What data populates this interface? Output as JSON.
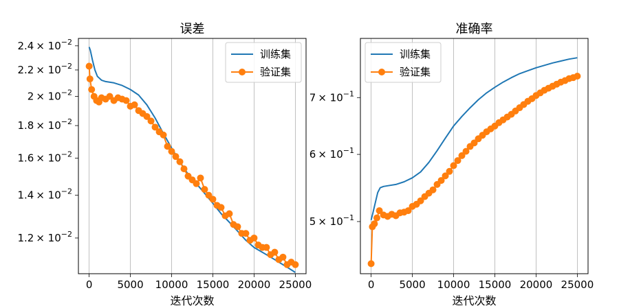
{
  "chart_data": [
    {
      "type": "line",
      "title": "误差",
      "xlabel": "迭代次数",
      "ylabel": "",
      "xlim": [
        -1300,
        26300
      ],
      "ylim": [
        0.01055,
        0.02465
      ],
      "yscale": "log",
      "grid": "x",
      "legend": "top-right",
      "xticks": [
        0,
        5000,
        10000,
        15000,
        20000,
        25000
      ],
      "xtick_labels": [
        "0",
        "5000",
        "10000",
        "15000",
        "20000",
        "25000"
      ],
      "yticks": [
        0.012,
        0.014,
        0.016,
        0.018,
        0.02,
        0.022,
        0.024
      ],
      "ytick_mantissas": [
        "1.2",
        "1.4",
        "1.6",
        "1.8",
        "2",
        "2.2",
        "2.4"
      ],
      "ytick_exponents": [
        "−2",
        "−2",
        "−2",
        "−2",
        "−2",
        "−2",
        "−2"
      ],
      "ytick_base": "× 10",
      "series": [
        {
          "name": "训练集",
          "color": "#1f77b4",
          "marker": "none",
          "x": [
            0,
            150,
            400,
            700,
            1000,
            1500,
            2000,
            3000,
            4000,
            5000,
            6000,
            7000,
            8000,
            9000,
            10000,
            11000,
            12000,
            13000,
            14000,
            15000,
            16000,
            17000,
            18000,
            19000,
            20000,
            21000,
            22000,
            23000,
            24000,
            25000
          ],
          "y": [
            0.0239,
            0.0236,
            0.0228,
            0.022,
            0.0215,
            0.0212,
            0.0211,
            0.021,
            0.0208,
            0.0205,
            0.0201,
            0.0194,
            0.0185,
            0.0175,
            0.0166,
            0.0158,
            0.0151,
            0.0146,
            0.0141,
            0.0136,
            0.0131,
            0.0127,
            0.0123,
            0.0119,
            0.0116,
            0.0114,
            0.0112,
            0.011,
            0.0108,
            0.0106
          ]
        },
        {
          "name": "验证集",
          "color": "#ff7f0e",
          "marker": "o",
          "x": [
            0,
            100,
            300,
            600,
            900,
            1200,
            1500,
            2000,
            2500,
            3000,
            3500,
            4000,
            4500,
            5000,
            5500,
            6000,
            6500,
            7000,
            7500,
            8000,
            8500,
            9000,
            9500,
            10000,
            10500,
            11000,
            11500,
            12000,
            12500,
            13000,
            13500,
            14000,
            14500,
            15000,
            15500,
            16000,
            16500,
            17000,
            17500,
            18000,
            18500,
            19000,
            19500,
            20000,
            20500,
            21000,
            21500,
            22000,
            22500,
            23000,
            23500,
            24000,
            24500,
            25000
          ],
          "y": [
            0.0223,
            0.0213,
            0.0205,
            0.02,
            0.0197,
            0.0196,
            0.0199,
            0.0198,
            0.02,
            0.0197,
            0.0199,
            0.0198,
            0.0197,
            0.0193,
            0.0194,
            0.019,
            0.0188,
            0.0186,
            0.0183,
            0.0179,
            0.0176,
            0.0174,
            0.0167,
            0.0164,
            0.0161,
            0.0158,
            0.0154,
            0.015,
            0.0148,
            0.0146,
            0.0149,
            0.0143,
            0.014,
            0.0138,
            0.0135,
            0.0134,
            0.013,
            0.0131,
            0.0126,
            0.0125,
            0.0122,
            0.0122,
            0.0119,
            0.012,
            0.0117,
            0.0116,
            0.0116,
            0.0113,
            0.0114,
            0.0111,
            0.0112,
            0.0109,
            0.011,
            0.0109
          ]
        }
      ]
    },
    {
      "type": "line",
      "title": "准确率",
      "xlabel": "迭代次数",
      "ylabel": "",
      "xlim": [
        -1300,
        26300
      ],
      "ylim": [
        0.434,
        0.822
      ],
      "yscale": "log",
      "grid": "x",
      "legend": "top-left",
      "xticks": [
        0,
        5000,
        10000,
        15000,
        20000,
        25000
      ],
      "xtick_labels": [
        "0",
        "5000",
        "10000",
        "15000",
        "20000",
        "25000"
      ],
      "yticks": [
        0.5,
        0.6,
        0.7
      ],
      "ytick_mantissas": [
        "5",
        "6",
        "7"
      ],
      "ytick_exponents": [
        "−1",
        "−1",
        "−1"
      ],
      "ytick_base": "× 10",
      "series": [
        {
          "name": "训练集",
          "color": "#1f77b4",
          "marker": "none",
          "x": [
            0,
            200,
            500,
            800,
            1100,
            1500,
            2000,
            3000,
            4000,
            5000,
            6000,
            7000,
            8000,
            9000,
            10000,
            11000,
            12000,
            13000,
            14000,
            15000,
            16000,
            17000,
            18000,
            19000,
            20000,
            21000,
            22000,
            23000,
            24000,
            25000
          ],
          "y": [
            0.502,
            0.511,
            0.526,
            0.541,
            0.548,
            0.55,
            0.551,
            0.553,
            0.557,
            0.563,
            0.572,
            0.587,
            0.606,
            0.627,
            0.648,
            0.665,
            0.681,
            0.696,
            0.709,
            0.72,
            0.73,
            0.739,
            0.747,
            0.753,
            0.759,
            0.764,
            0.769,
            0.773,
            0.777,
            0.78
          ]
        },
        {
          "name": "验证集",
          "color": "#ff7f0e",
          "marker": "o",
          "x": [
            0,
            150,
            400,
            700,
            1000,
            1500,
            2000,
            2500,
            3000,
            3500,
            4000,
            4500,
            5000,
            5500,
            6000,
            6500,
            7000,
            7500,
            8000,
            8500,
            9000,
            9500,
            10000,
            10500,
            11000,
            11500,
            12000,
            12500,
            13000,
            13500,
            14000,
            14500,
            15000,
            15500,
            16000,
            16500,
            17000,
            17500,
            18000,
            18500,
            19000,
            19500,
            20000,
            20500,
            21000,
            21500,
            22000,
            22500,
            23000,
            23500,
            24000,
            24500,
            25000
          ],
          "y": [
            0.446,
            0.493,
            0.497,
            0.505,
            0.515,
            0.509,
            0.507,
            0.51,
            0.508,
            0.512,
            0.513,
            0.515,
            0.521,
            0.524,
            0.529,
            0.535,
            0.54,
            0.545,
            0.553,
            0.559,
            0.566,
            0.573,
            0.582,
            0.59,
            0.598,
            0.605,
            0.613,
            0.619,
            0.626,
            0.632,
            0.638,
            0.643,
            0.648,
            0.654,
            0.659,
            0.664,
            0.669,
            0.675,
            0.681,
            0.687,
            0.693,
            0.698,
            0.704,
            0.709,
            0.714,
            0.718,
            0.722,
            0.726,
            0.73,
            0.733,
            0.737,
            0.739,
            0.742
          ]
        }
      ]
    }
  ]
}
